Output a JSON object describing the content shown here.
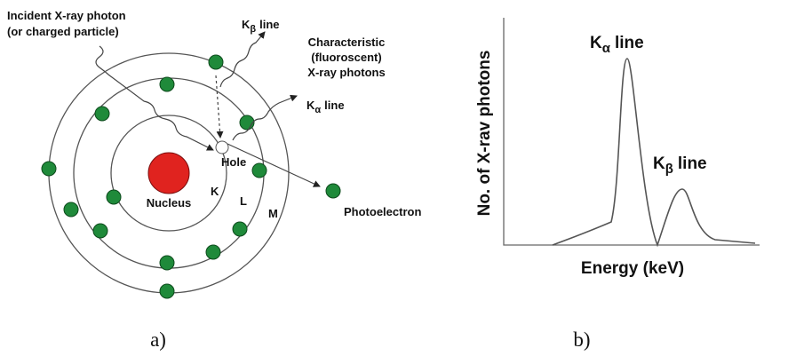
{
  "panel_a": {
    "incident_label": [
      "Incident X-ray photon",
      "(or charged particle)"
    ],
    "k_beta_label": {
      "symbol": "K",
      "subscript": "β",
      "text": "line"
    },
    "k_alpha_label": {
      "symbol": "K",
      "subscript": "α",
      "text": "line"
    },
    "characteristic_label": [
      "Characteristic",
      "(fluoroscent)",
      "X-ray photons"
    ],
    "hole_label": "Hole",
    "nucleus_label": "Nucleus",
    "shell_labels": [
      "K",
      "L",
      "M"
    ],
    "photoelectron_label": "Photoelectron",
    "caption": "a)"
  },
  "panel_b": {
    "y_axis_label": "No. of X-rav photons",
    "x_axis_label": "Energy (keV)",
    "k_alpha_label": {
      "symbol": "K",
      "subscript": "α",
      "text": "line"
    },
    "k_beta_label": {
      "symbol": "K",
      "subscript": "β",
      "text": "line"
    },
    "caption": "b)"
  }
}
